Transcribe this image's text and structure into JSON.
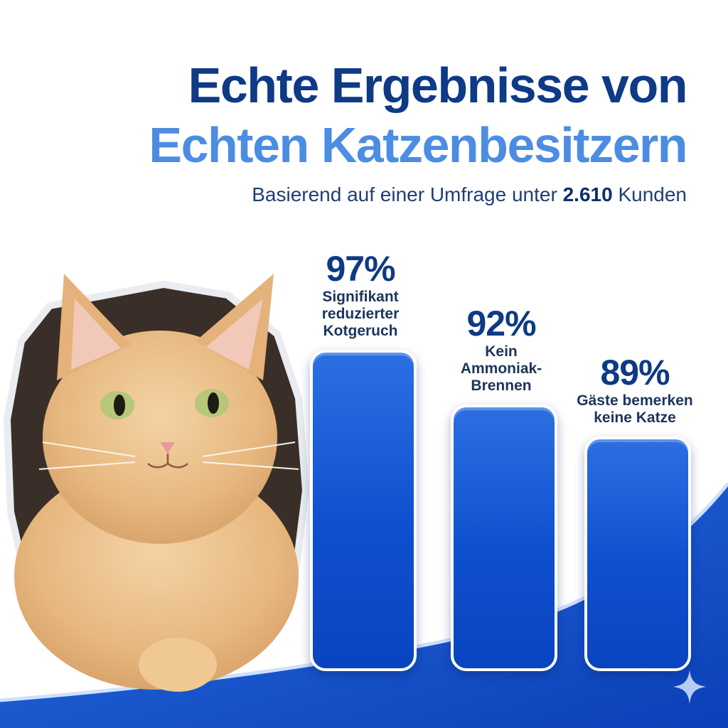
{
  "header": {
    "title_line1": "Echte Ergebnisse von",
    "title_line2": "Echten Katzenbesitzern",
    "subtitle_prefix": "Basierend auf einer Umfrage unter",
    "subtitle_number": "2.610",
    "subtitle_suffix": "Kunden"
  },
  "colors": {
    "title_dark": "#0e3a86",
    "title_light": "#4c8de3",
    "bar_blue": "#0f4fcf",
    "wave_blue": "#0b45c8"
  },
  "icons": [
    "cat-photo",
    "sparkle-icon"
  ],
  "chart_data": {
    "type": "bar",
    "categories": [
      "Signifikant reduzierter Kotgeruch",
      "Kein Ammoniak-Brennen",
      "Gäste bemerken keine Katze"
    ],
    "values": [
      97,
      92,
      89
    ],
    "value_labels": [
      "97%",
      "92%",
      "89%"
    ],
    "label_lines": [
      [
        "Signifikant",
        "reduzierter",
        "Kotgeruch"
      ],
      [
        "Kein",
        "Ammoniak-",
        "Brennen"
      ],
      [
        "Gäste bemerken",
        "keine Katze"
      ]
    ],
    "ylim": [
      0,
      100
    ],
    "grid": false,
    "legend": "none"
  }
}
